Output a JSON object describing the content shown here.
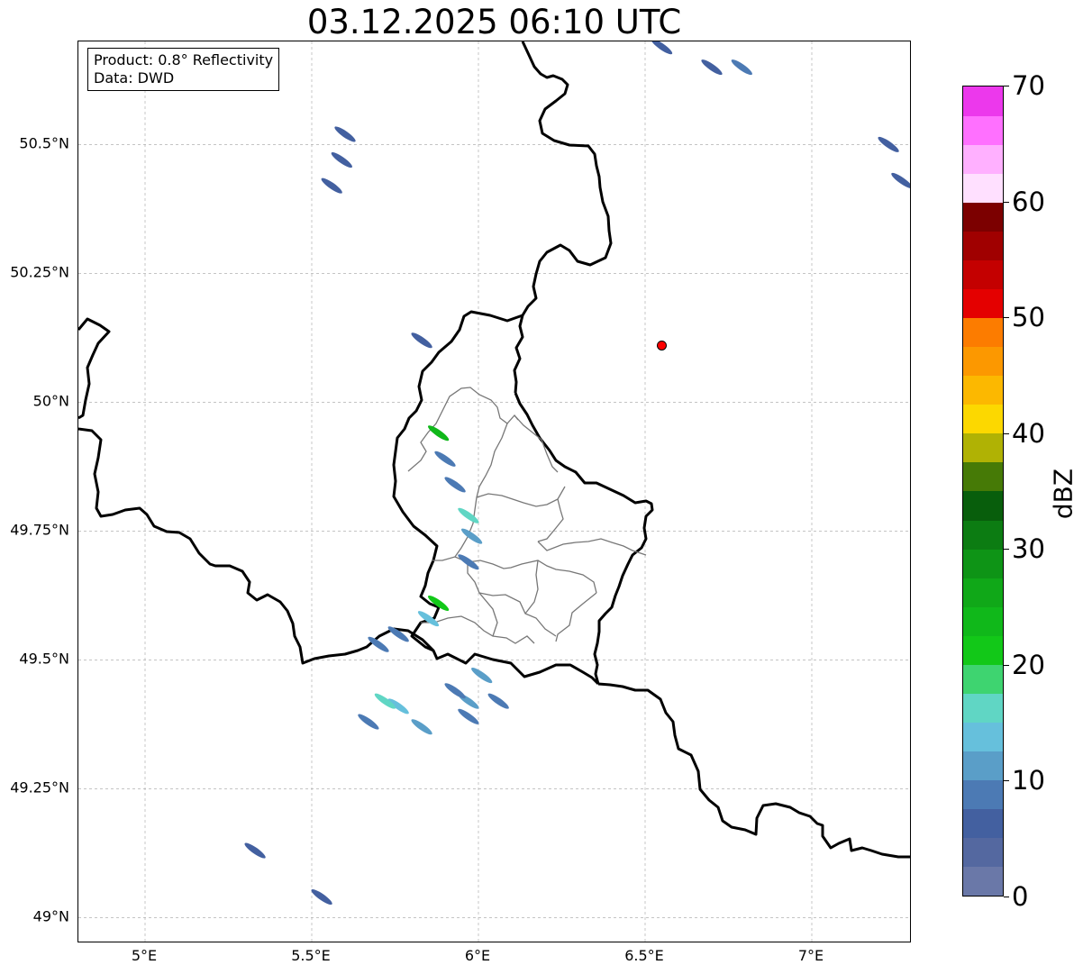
{
  "title": "03.12.2025 06:10 UTC",
  "infobox": {
    "product": "Product: 0.8° Reflectivity",
    "data": "Data: DWD"
  },
  "map": {
    "lon_range": [
      4.8,
      7.3
    ],
    "lat_range": [
      48.95,
      50.7
    ],
    "lat_ticks": [
      {
        "value": 50.5,
        "label": "50.5°N"
      },
      {
        "value": 50.25,
        "label": "50.25°N"
      },
      {
        "value": 50.0,
        "label": "50°N"
      },
      {
        "value": 49.75,
        "label": "49.75°N"
      },
      {
        "value": 49.5,
        "label": "49.5°N"
      },
      {
        "value": 49.25,
        "label": "49.25°N"
      },
      {
        "value": 49.0,
        "label": "49°N"
      }
    ],
    "lon_ticks": [
      {
        "value": 5.0,
        "label": "5°E"
      },
      {
        "value": 5.5,
        "label": "5.5°E"
      },
      {
        "value": 6.0,
        "label": "6°E"
      },
      {
        "value": 6.5,
        "label": "6.5°E"
      },
      {
        "value": 7.0,
        "label": "7°E"
      }
    ],
    "radar_site": {
      "lon": 6.55,
      "lat": 50.11,
      "color": "#ff0000"
    },
    "echoes": [
      {
        "lon": 5.6,
        "lat": 50.52,
        "dbz": 6
      },
      {
        "lon": 5.59,
        "lat": 50.47,
        "dbz": 6
      },
      {
        "lon": 5.56,
        "lat": 50.42,
        "dbz": 6
      },
      {
        "lon": 5.83,
        "lat": 50.12,
        "dbz": 6
      },
      {
        "lon": 6.55,
        "lat": 50.69,
        "dbz": 6
      },
      {
        "lon": 6.7,
        "lat": 50.65,
        "dbz": 6
      },
      {
        "lon": 6.79,
        "lat": 50.65,
        "dbz": 8
      },
      {
        "lon": 7.23,
        "lat": 50.5,
        "dbz": 6
      },
      {
        "lon": 7.27,
        "lat": 50.43,
        "dbz": 6
      },
      {
        "lon": 5.88,
        "lat": 49.94,
        "dbz": 24
      },
      {
        "lon": 5.9,
        "lat": 49.89,
        "dbz": 8
      },
      {
        "lon": 5.93,
        "lat": 49.84,
        "dbz": 8
      },
      {
        "lon": 5.97,
        "lat": 49.78,
        "dbz": 16
      },
      {
        "lon": 5.98,
        "lat": 49.74,
        "dbz": 10
      },
      {
        "lon": 5.97,
        "lat": 49.69,
        "dbz": 8
      },
      {
        "lon": 5.88,
        "lat": 49.61,
        "dbz": 20
      },
      {
        "lon": 5.85,
        "lat": 49.58,
        "dbz": 14
      },
      {
        "lon": 5.76,
        "lat": 49.55,
        "dbz": 8
      },
      {
        "lon": 5.7,
        "lat": 49.53,
        "dbz": 8
      },
      {
        "lon": 5.97,
        "lat": 49.42,
        "dbz": 10
      },
      {
        "lon": 5.93,
        "lat": 49.44,
        "dbz": 8
      },
      {
        "lon": 6.01,
        "lat": 49.47,
        "dbz": 12
      },
      {
        "lon": 5.76,
        "lat": 49.41,
        "dbz": 14
      },
      {
        "lon": 5.72,
        "lat": 49.42,
        "dbz": 16
      },
      {
        "lon": 5.83,
        "lat": 49.37,
        "dbz": 10
      },
      {
        "lon": 5.67,
        "lat": 49.38,
        "dbz": 8
      },
      {
        "lon": 6.06,
        "lat": 49.42,
        "dbz": 8
      },
      {
        "lon": 5.97,
        "lat": 49.39,
        "dbz": 8
      },
      {
        "lon": 5.33,
        "lat": 49.13,
        "dbz": 6
      },
      {
        "lon": 5.53,
        "lat": 49.04,
        "dbz": 6
      }
    ]
  },
  "colorbar": {
    "label": "dBZ",
    "min": 0,
    "max": 70,
    "ticks": [
      {
        "value": 0,
        "label": "0"
      },
      {
        "value": 10,
        "label": "10"
      },
      {
        "value": 20,
        "label": "20"
      },
      {
        "value": 30,
        "label": "30"
      },
      {
        "value": 40,
        "label": "40"
      },
      {
        "value": 50,
        "label": "50"
      },
      {
        "value": 60,
        "label": "60"
      },
      {
        "value": 70,
        "label": "70"
      }
    ],
    "colors": [
      "#6a78a8",
      "#5468a0",
      "#4360a0",
      "#4c7ab4",
      "#5a9ec8",
      "#66c0dc",
      "#60d6c4",
      "#3ed470",
      "#12c818",
      "#10b81a",
      "#10a818",
      "#0e9416",
      "#0c7c12",
      "#085e0c",
      "#467a06",
      "#b0b204",
      "#fcd800",
      "#fcb800",
      "#fc9800",
      "#fc7c00",
      "#e40000",
      "#c40000",
      "#a00000",
      "#7c0000",
      "#ffe0ff",
      "#ffb0ff",
      "#ff70ff",
      "#ec38ec"
    ]
  }
}
